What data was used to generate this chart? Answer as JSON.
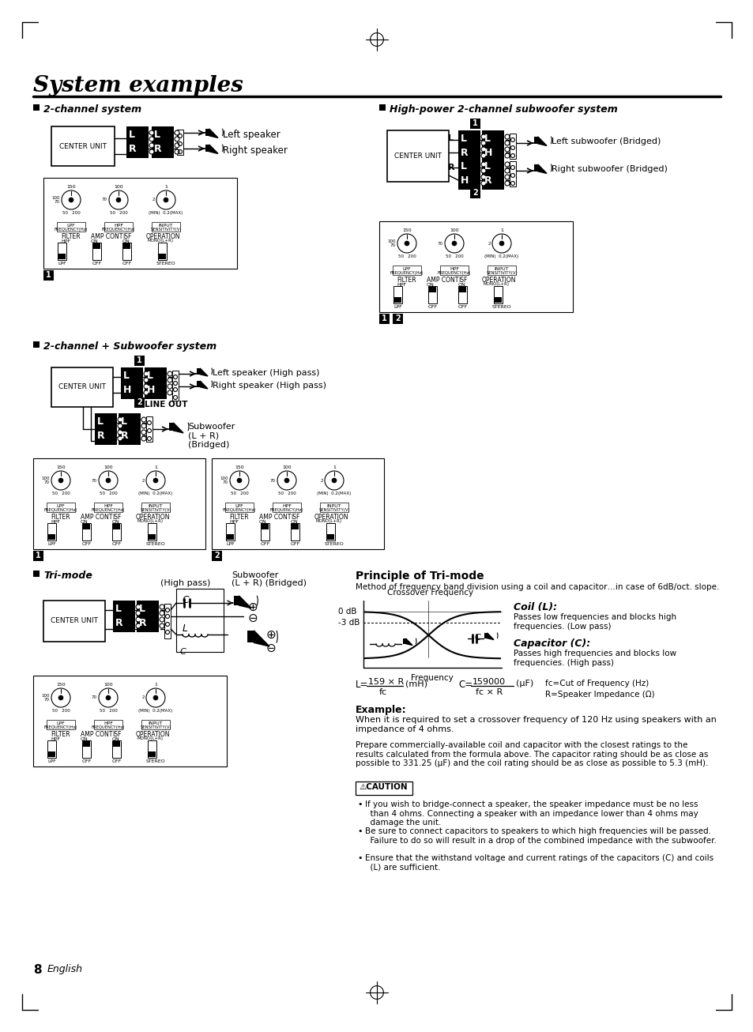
{
  "title": "System examples",
  "page_number": "8",
  "page_label": "English",
  "bg_color": "#ffffff",
  "sections": [
    "2-channel system",
    "High-power 2-channel subwoofer system",
    "2-channel + Subwoofer system",
    "Tri-mode"
  ],
  "principle_title": "Principle of Tri-mode",
  "principle_desc": "Method of frequency band division using a coil and capacitor…in case of 6dB/oct. slope.",
  "coil_title": "Coil (L):",
  "coil_desc": "Passes low frequencies and blocks high\nfrequencies. (Low pass)",
  "cap_title": "Capacitor (C):",
  "cap_desc": "Passes high frequencies and blocks low\nfrequencies. (High pass)",
  "formula_note1": "fc=Cut of Frequency (Hz)",
  "formula_note2": "R=Speaker Impedance (Ω)",
  "example_title": "Example:",
  "example_text1": "When it is required to set a crossover frequency of 120 Hz using speakers with an\nimpedance of 4 ohms.",
  "example_text2": "Prepare commercially-available coil and capacitor with the closest ratings to the\nresults calculated from the formula above. The capacitor rating should be as close as\npossible to 331.25 (μF) and the coil rating should be as close as possible to 5.3 (mH).",
  "caution_label": "⚠CAUTION",
  "caution1": "If you wish to bridge-connect a speaker, the speaker impedance must be no less\n  than 4 ohms. Connecting a speaker with an impedance lower than 4 ohms may\n  damage the unit.",
  "caution2": "Be sure to connect capacitors to speakers to which high frequencies will be passed.\n  Failure to do so will result in a drop of the combined impedance with the subwoofer.",
  "caution3": "Ensure that the withstand voltage and current ratings of the capacitors (C) and coils\n  (L) are sufficient.",
  "high_pass_label": "(High pass)",
  "subwoofer_label": "Subwoofer\n(L + R) (Bridged)",
  "left_spk": "Left speaker",
  "right_spk": "Right speaker",
  "left_sub_bridged": "Left subwoofer (Bridged)",
  "right_sub_bridged": "Right subwoofer (Bridged)",
  "left_spk_hp": "Left speaker (High pass)",
  "right_spk_hp": "Right speaker (High pass)",
  "subwoofer_lr_bridged": "Subwoofer\n(L + R)\n(Bridged)",
  "line_out": "LINE OUT",
  "center_unit": "CENTER UNIT",
  "crossover_freq_label": "Crossover Frequency",
  "freq_label": "Frequency",
  "db0_label": "0 dB",
  "db3_label": "-3 dB"
}
